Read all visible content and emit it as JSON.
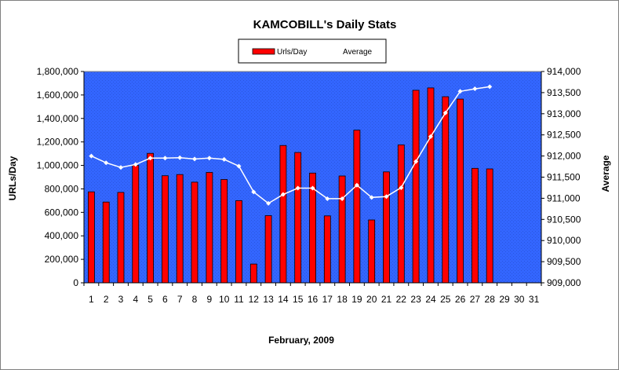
{
  "chart_data": {
    "type": "bar",
    "title": "KAMCOBILL's Daily Stats",
    "xlabel": "February, 2009",
    "ylabel": "URLs/Day",
    "y2label": "Average",
    "categories": [
      "1",
      "2",
      "3",
      "4",
      "5",
      "6",
      "7",
      "8",
      "9",
      "10",
      "11",
      "12",
      "13",
      "14",
      "15",
      "16",
      "17",
      "18",
      "19",
      "20",
      "21",
      "22",
      "23",
      "24",
      "25",
      "26",
      "27",
      "28",
      "29",
      "30",
      "31"
    ],
    "ylim": [
      0,
      1800000
    ],
    "yticks": [
      "0",
      "200,000",
      "400,000",
      "600,000",
      "800,000",
      "1,000,000",
      "1,200,000",
      "1,400,000",
      "1,600,000",
      "1,800,000"
    ],
    "y2lim": [
      909000,
      914000
    ],
    "y2ticks": [
      "909,000",
      "909,500",
      "910,000",
      "910,500",
      "911,000",
      "911,500",
      "912,000",
      "912,500",
      "913,000",
      "913,500",
      "914,000"
    ],
    "legend_position": "top-center",
    "grid": false,
    "series": [
      {
        "name": "Urls/Day",
        "type": "bar",
        "axis": "left",
        "color": "#ff0000",
        "values": [
          775000,
          688000,
          770000,
          1000000,
          1103000,
          912000,
          922000,
          857000,
          940000,
          880000,
          700000,
          160000,
          572000,
          1170000,
          1110000,
          935000,
          570000,
          910000,
          1300000,
          535000,
          945000,
          1175000,
          1640000,
          1660000,
          1585000,
          1565000,
          975000,
          970000,
          null,
          null,
          null
        ]
      },
      {
        "name": "Average",
        "type": "line",
        "axis": "right",
        "color": "#ffffff",
        "values": [
          912000,
          911840,
          911730,
          911800,
          911950,
          911950,
          911960,
          911930,
          911950,
          911920,
          911760,
          911150,
          910880,
          911090,
          911240,
          911240,
          910990,
          910990,
          911310,
          911020,
          911040,
          911250,
          911870,
          912460,
          913020,
          913530,
          913590,
          913640,
          null,
          null,
          null
        ]
      }
    ]
  },
  "colors": {
    "plot_background": "#3366ff",
    "bar_fill": "#ff0000",
    "bar_stroke": "#000000",
    "line_color": "#ffffff",
    "frame": "#808080"
  }
}
